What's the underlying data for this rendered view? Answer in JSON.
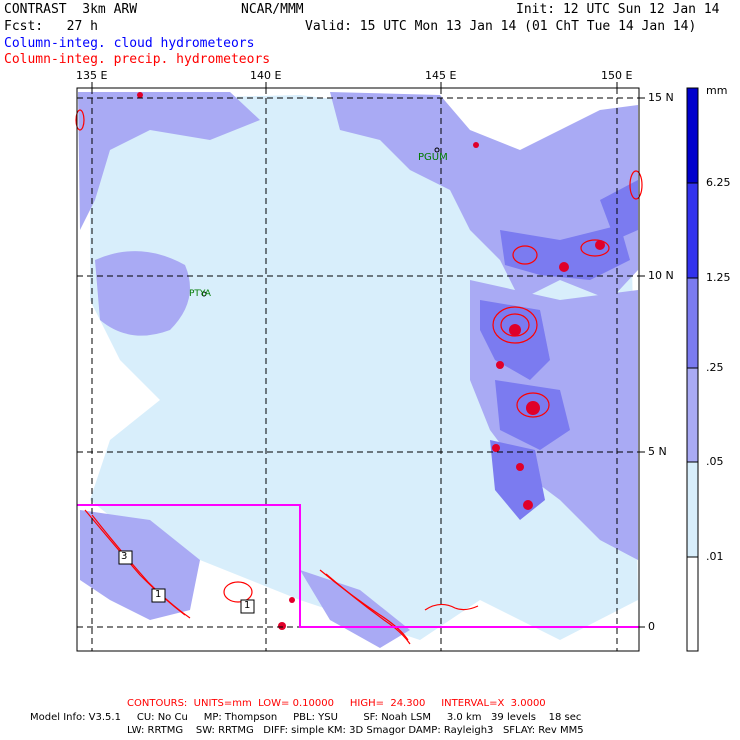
{
  "header": {
    "model": "CONTRAST  3km ARW",
    "org": "NCAR/MMM",
    "init": "Init: 12 UTC Sun 12 Jan 14",
    "fcst": "Fcst:   27 h",
    "valid": "Valid: 15 UTC Mon 13 Jan 14 (01 ChT Tue 14 Jan 14)",
    "legend_cloud": "Column-integ. cloud hydrometeors",
    "legend_precip": "Column-integ. precip. hydrometeors"
  },
  "map": {
    "lon_labels": [
      "135 E",
      "140 E",
      "145 E",
      "150 E"
    ],
    "lat_labels": [
      "15 N",
      "10 N",
      "5 N",
      "0"
    ],
    "stations": [
      "PGUM",
      "PTYA"
    ],
    "contour_labels": [
      "3",
      "1",
      "1"
    ]
  },
  "colorbar": {
    "unit": "mm",
    "levels": [
      "6.25",
      "1.25",
      ".25",
      ".05",
      ".01"
    ],
    "colors": [
      "#0000cc",
      "#3333ee",
      "#7b7bf0",
      "#a9aaf4",
      "#d8eefb",
      "#ffffff"
    ]
  },
  "footer": {
    "contours": "CONTOURS:  UNITS=mm  LOW= 0.10000     HIGH=  24.300     INTERVAL=X  3.0000",
    "model_info": "Model Info: V3.5.1     CU: No Cu     MP: Thompson     PBL: YSU        SF: Noah LSM     3.0 km   39 levels    18 sec",
    "model_info2": "LW: RRTMG    SW: RRTMG   DIFF: simple KM: 3D Smagor DAMP: Rayleigh3   SFLAY: Rev MM5"
  },
  "colors": {
    "cloud_light": "#d8eefb",
    "cloud_mid": "#a9aaf4",
    "cloud_dark": "#7b7bf0",
    "precip": "#ff0000",
    "box": "#ff00ff"
  }
}
